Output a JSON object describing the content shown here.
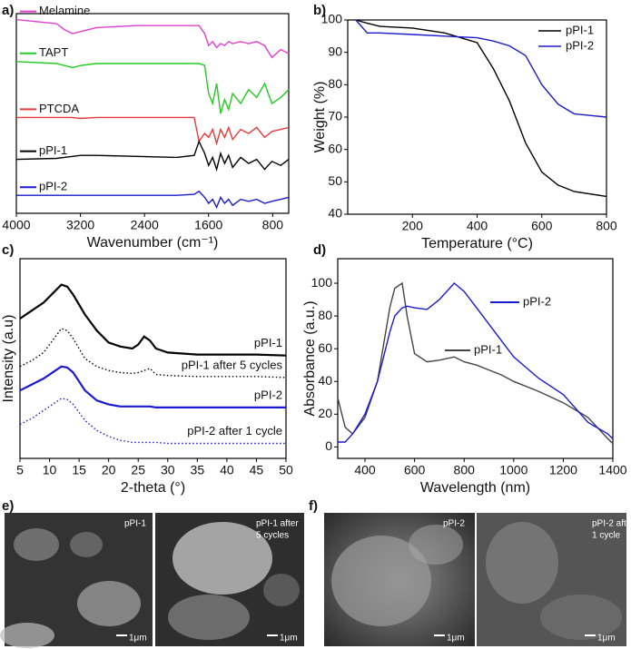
{
  "chart_data": [
    {
      "type": "line",
      "label": "a)",
      "x_label": "Wavenumber (cm⁻¹)",
      "x": [
        4000,
        3500,
        3400,
        3300,
        3200,
        3000,
        2500,
        2000,
        1780,
        1720,
        1650,
        1600,
        1550,
        1500,
        1450,
        1400,
        1350,
        1300,
        1200,
        1100,
        1000,
        900,
        810,
        700,
        600
      ],
      "xlim": [
        4000,
        600
      ],
      "xticks": [
        4000,
        3200,
        2400,
        1600,
        800
      ],
      "ylim": [
        0,
        100
      ],
      "legend": "inline",
      "series": [
        {
          "name": "Melamine",
          "color": "#e040d0",
          "values": [
            97,
            95,
            92,
            90,
            91,
            93,
            94,
            94,
            94,
            94,
            90,
            84,
            86,
            83,
            85,
            84,
            86,
            85,
            86,
            85,
            86,
            84,
            78,
            82,
            80
          ]
        },
        {
          "name": "TAPT",
          "color": "#22cc22",
          "values": [
            76,
            75,
            74,
            73,
            74,
            75,
            75,
            75,
            75,
            75,
            74,
            60,
            55,
            65,
            50,
            57,
            52,
            60,
            55,
            62,
            58,
            65,
            55,
            58,
            62
          ]
        },
        {
          "name": "PTCDA",
          "color": "#e83a3a",
          "values": [
            48,
            48,
            48,
            48,
            47.5,
            48,
            48,
            48,
            48,
            36,
            40,
            38,
            42,
            35,
            42,
            38,
            43,
            37,
            42,
            40,
            43,
            38,
            41,
            42,
            43
          ]
        },
        {
          "name": "pPI-1",
          "color": "#000000",
          "values": [
            27,
            27.5,
            28,
            28.5,
            29,
            29,
            28.5,
            28,
            29,
            36,
            30,
            24,
            28,
            22,
            30,
            25,
            29,
            23,
            28,
            25,
            27,
            22,
            26,
            24,
            27
          ]
        },
        {
          "name": "pPI-2",
          "color": "#1a1ad0",
          "values": [
            9,
            9,
            9,
            9,
            9,
            9,
            9,
            9,
            9.5,
            11,
            8,
            5,
            7,
            3,
            8,
            5,
            7,
            4,
            7,
            6,
            7,
            5,
            6,
            7,
            8
          ]
        }
      ]
    },
    {
      "type": "line",
      "label": "b)",
      "x_label": "Temperature (°C)",
      "y_label": "Weight (%)",
      "x": [
        25,
        60,
        100,
        200,
        300,
        400,
        450,
        500,
        550,
        600,
        650,
        700,
        800
      ],
      "xlim": [
        0,
        800
      ],
      "xticks": [
        200,
        400,
        600,
        800
      ],
      "ylim": [
        40,
        100
      ],
      "yticks": [
        40,
        50,
        60,
        70,
        80,
        90,
        100
      ],
      "legend": "upper right",
      "series": [
        {
          "name": "pPI-1",
          "color": "#000000",
          "values": [
            100,
            99,
            98,
            97.5,
            96,
            93,
            85,
            75,
            62,
            53,
            49,
            47,
            45.5
          ]
        },
        {
          "name": "pPI-2",
          "color": "#1a1ad0",
          "values": [
            100,
            96,
            96,
            95.5,
            95,
            94.5,
            93.5,
            92,
            89,
            80,
            74,
            71,
            70
          ]
        }
      ]
    },
    {
      "type": "line",
      "label": "c)",
      "x_label": "2-theta (°)",
      "y_label": "Intensity (a.u)",
      "x": [
        5,
        7,
        9,
        11,
        12,
        13,
        14,
        16,
        18,
        20,
        22,
        24,
        25,
        26,
        27,
        28,
        30,
        35,
        40,
        45,
        50
      ],
      "xlim": [
        5,
        50
      ],
      "xticks": [
        5,
        10,
        15,
        20,
        25,
        30,
        35,
        40,
        45,
        50
      ],
      "ylim": [
        0,
        100
      ],
      "legend": "inline",
      "series": [
        {
          "name": "pPI-1",
          "color": "#000000",
          "dash": false,
          "values": [
            70,
            74,
            78,
            84,
            87,
            86,
            82,
            72,
            64,
            58,
            56,
            55,
            57,
            61,
            59,
            55,
            53,
            52,
            52,
            52,
            51.5
          ]
        },
        {
          "name": "pPI-1  after 5 cycles",
          "color": "#000000",
          "dash": true,
          "values": [
            46,
            49,
            53,
            61,
            65,
            64,
            60,
            50,
            46,
            44,
            43,
            42.5,
            43,
            44,
            45,
            42,
            41.5,
            41,
            41,
            41,
            40.5
          ]
        },
        {
          "name": "pPI-2",
          "color": "#1a1ad0",
          "dash": false,
          "values": [
            34,
            37,
            40,
            44,
            46,
            45.5,
            43,
            34,
            29,
            27,
            26,
            26,
            26,
            26,
            26,
            25.5,
            25.5,
            25.5,
            25.5,
            25.5,
            25.5
          ]
        },
        {
          "name": "pPI-2 after 1 cycle",
          "color": "#1a1ad0",
          "dash": true,
          "values": [
            17,
            20,
            24,
            28,
            30,
            29.5,
            27,
            19,
            14,
            11,
            9,
            8,
            8,
            8,
            8,
            8,
            7.5,
            7.5,
            7.5,
            7.5,
            7.5
          ]
        }
      ]
    },
    {
      "type": "line",
      "label": "d)",
      "x_label": "Wavelength (nm)",
      "y_label": "Absorbance (a.u.)",
      "x": [
        290,
        320,
        350,
        400,
        450,
        500,
        520,
        550,
        570,
        600,
        650,
        700,
        760,
        800,
        850,
        900,
        950,
        1000,
        1100,
        1200,
        1300,
        1380,
        1400
      ],
      "xlim": [
        290,
        1400
      ],
      "xticks": [
        400,
        600,
        800,
        1000,
        1200,
        1400
      ],
      "ylim": [
        -7,
        115
      ],
      "yticks": [
        0,
        20,
        40,
        60,
        80,
        100
      ],
      "legend": "inline",
      "series": [
        {
          "name": "pPI-1",
          "color": "#444444",
          "values": [
            30,
            12,
            8,
            18,
            40,
            85,
            97,
            100,
            80,
            57,
            52,
            53,
            55,
            52,
            50,
            47,
            44,
            40,
            34,
            27,
            18,
            5,
            2
          ]
        },
        {
          "name": "pPI-2",
          "color": "#1a1ad0",
          "values": [
            3,
            3,
            8,
            20,
            40,
            70,
            80,
            85,
            86,
            85,
            84,
            90,
            100,
            95,
            85,
            75,
            65,
            55,
            42,
            32,
            15,
            8,
            5
          ]
        }
      ]
    }
  ],
  "images": [
    {
      "label": "e)",
      "items": [
        {
          "caption": [
            "pPI-1"
          ],
          "scale_bar": "1μm"
        },
        {
          "caption": [
            "pPI-1 after",
            "5 cycles"
          ],
          "scale_bar": "1μm"
        }
      ]
    },
    {
      "label": "f)",
      "items": [
        {
          "caption": [
            "pPI-2"
          ],
          "scale_bar": "1μm"
        },
        {
          "caption": [
            "pPI-2 after",
            "1 cycle"
          ],
          "scale_bar": "1μm"
        }
      ]
    }
  ]
}
